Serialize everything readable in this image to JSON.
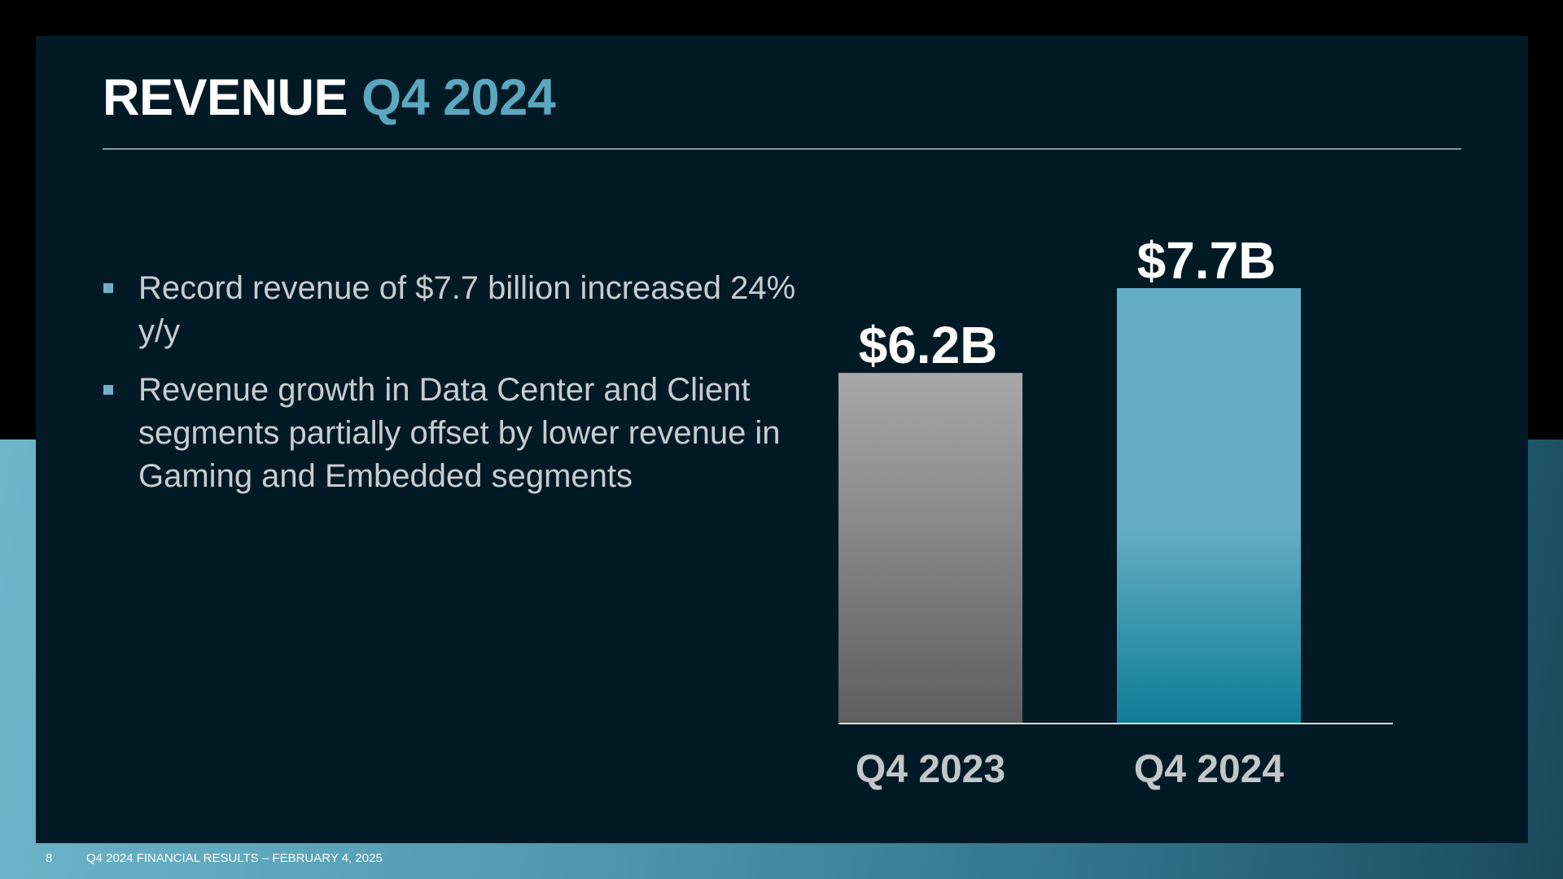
{
  "slide": {
    "title_main": "REVENUE",
    "title_accent": "Q4 2024",
    "bullets": [
      "Record revenue of $7.7 billion increased 24% y/y",
      "Revenue growth in Data Center and Client segments partially offset by lower revenue in Gaming and Embedded segments"
    ]
  },
  "footer": {
    "page_number": "8",
    "text": "Q4 2024 FINANCIAL RESULTS – FEBRUARY 4, 2025"
  },
  "colors": {
    "slide_background": "#021a26",
    "title_accent": "#5aa7bf",
    "bar_q4_2023_top": "#a8a8a8",
    "bar_q4_2023_bottom": "#5e5e5e",
    "bar_q4_2024_top": "#65adc2",
    "bar_q4_2024_bottom": "#0d7d98"
  },
  "chart_data": {
    "type": "bar",
    "categories": [
      "Q4 2023",
      "Q4 2024"
    ],
    "values": [
      6.2,
      7.7
    ],
    "data_labels": [
      "$6.2B",
      "$7.7B"
    ],
    "unit": "$B",
    "title": "",
    "xlabel": "",
    "ylabel": "",
    "ylim": [
      0,
      7.7
    ],
    "grid": false,
    "legend": "none"
  }
}
